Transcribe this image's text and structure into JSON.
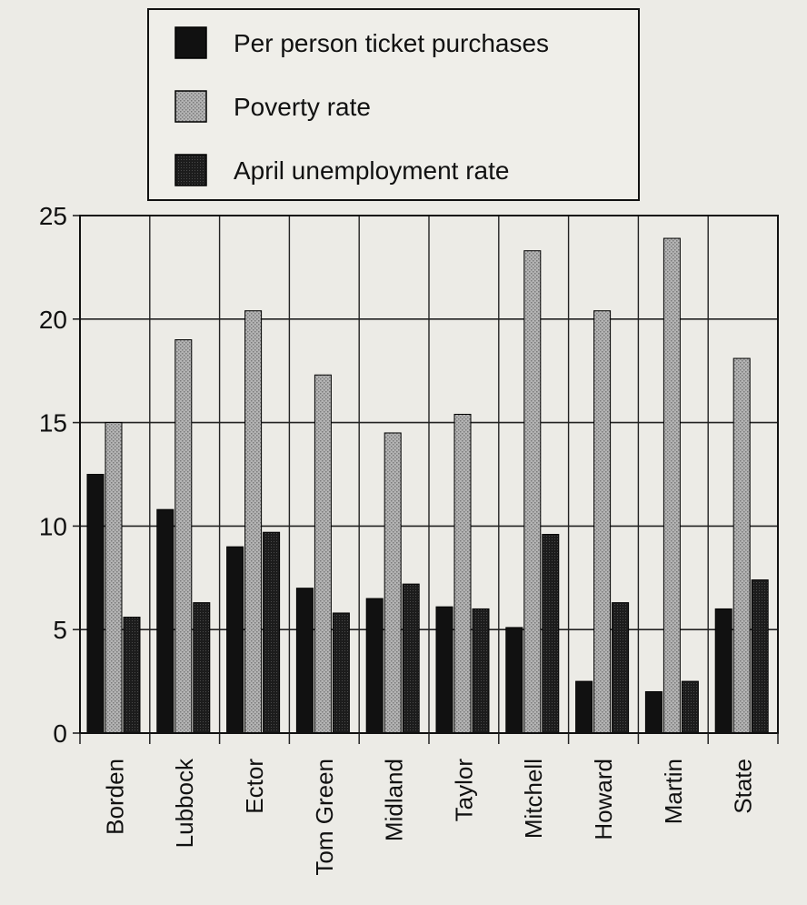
{
  "chart_data": {
    "type": "bar",
    "title": "",
    "xlabel": "",
    "ylabel": "",
    "ylim": [
      0,
      25
    ],
    "yticks": [
      0,
      5,
      10,
      15,
      20,
      25
    ],
    "grid": true,
    "legend_position": "top-center",
    "categories": [
      "Borden",
      "Lubbock",
      "Ector",
      "Tom Green",
      "Midland",
      "Taylor",
      "Mitchell",
      "Howard",
      "Martin",
      "State"
    ],
    "series": [
      {
        "name": "Per person ticket purchases",
        "fill": "#111111",
        "values": [
          12.5,
          10.8,
          9.0,
          7.0,
          6.5,
          6.1,
          5.1,
          2.5,
          2.0,
          6.0
        ]
      },
      {
        "name": "Poverty rate",
        "fill": "#a9a9a9",
        "values": [
          15.0,
          19.0,
          20.4,
          17.3,
          14.5,
          15.4,
          23.3,
          20.4,
          23.9,
          18.1
        ]
      },
      {
        "name": "April unemployment rate",
        "fill": "#1e1e1e",
        "values": [
          5.6,
          6.3,
          9.7,
          5.8,
          7.2,
          6.0,
          9.6,
          6.3,
          2.5,
          7.4
        ]
      }
    ]
  }
}
